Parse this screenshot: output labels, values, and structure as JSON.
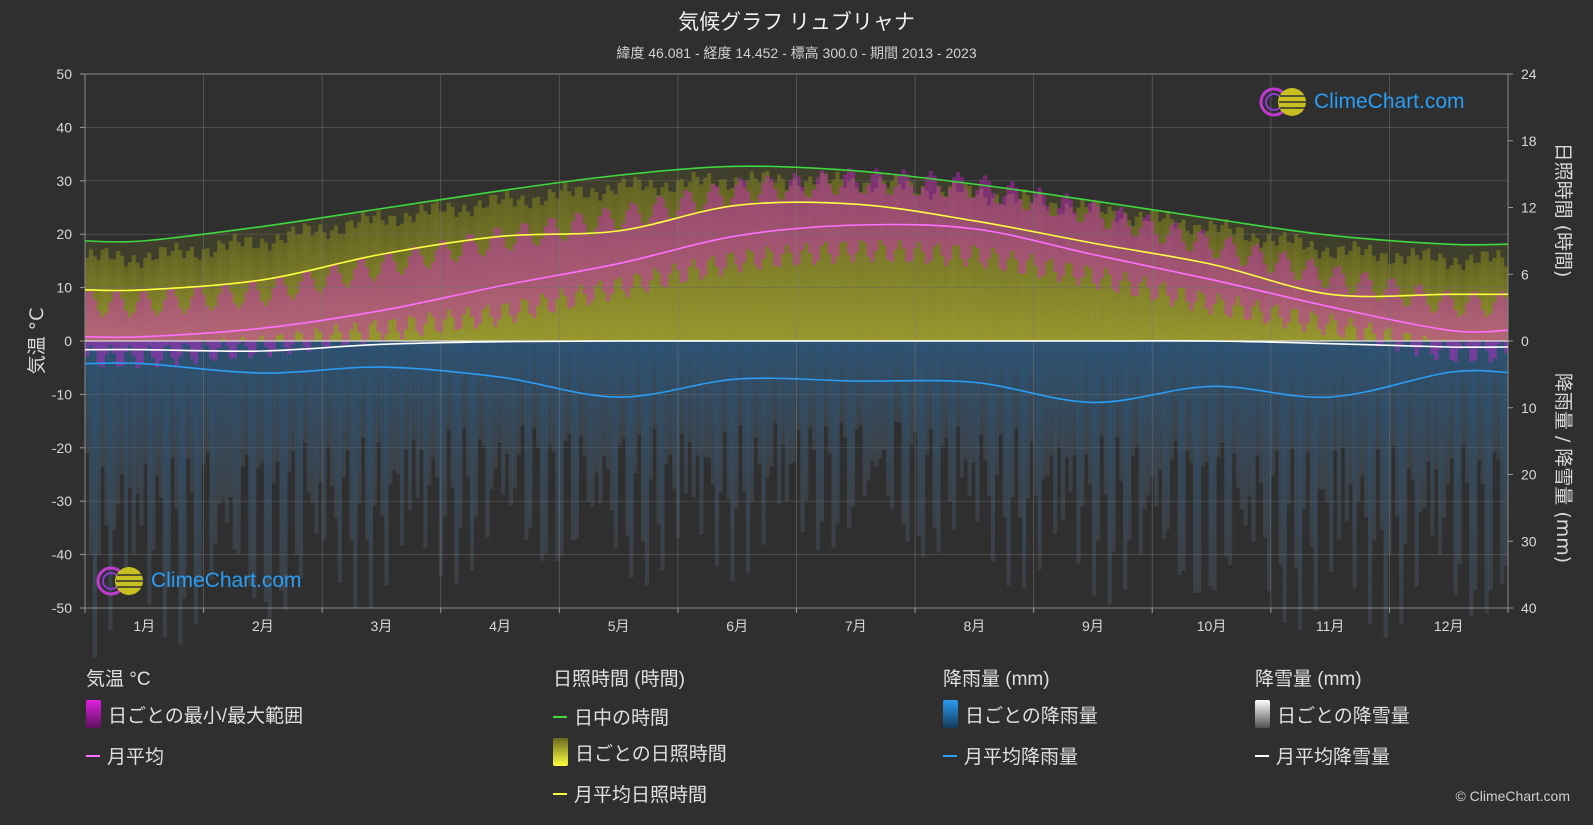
{
  "title": "気候グラフ リュブリャナ",
  "subtitle": "緯度 46.081 - 経度 14.452 - 標高 300.0 - 期間 2013 - 2023",
  "logo_text": "ClimeChart.com",
  "copyright": "© ClimeChart.com",
  "colors": {
    "temp_range": "#e020e0",
    "temp_avg": "#ff70ff",
    "daylight": "#3fd83f",
    "sunshine_fill": "#c8c832",
    "sunshine_avg": "#ffff40",
    "rain_fill": "#2a7fd0",
    "rain_avg": "#2a9df4",
    "snow_avg": "#ffffff",
    "grid": "#5a5a5a"
  },
  "legend": {
    "temp": {
      "heading": "気温 °C",
      "range_label": "日ごとの最小/最大範囲",
      "avg_label": "月平均"
    },
    "sun": {
      "heading": "日照時間 (時間)",
      "daylight_label": "日中の時間",
      "daily_label": "日ごとの日照時間",
      "avg_label": "月平均日照時間"
    },
    "rain": {
      "heading": "降雨量 (mm)",
      "daily_label": "日ごとの降雨量",
      "avg_label": "月平均降雨量"
    },
    "snow": {
      "heading": "降雪量 (mm)",
      "daily_label": "日ごとの降雪量",
      "avg_label": "月平均降雪量"
    }
  },
  "chart_data": {
    "type": "line",
    "categories": [
      "1月",
      "2月",
      "3月",
      "4月",
      "5月",
      "6月",
      "7月",
      "8月",
      "9月",
      "10月",
      "11月",
      "12月"
    ],
    "y_left": {
      "label": "気温 °C",
      "ticks": [
        50,
        40,
        30,
        20,
        10,
        0,
        -10,
        -20,
        -30,
        -40,
        -50
      ],
      "range": [
        -50,
        50
      ]
    },
    "y_right_top": {
      "label": "日照時間 (時間)",
      "ticks": [
        24,
        18,
        12,
        6,
        0
      ],
      "range": [
        0,
        24
      ]
    },
    "y_right_bottom": {
      "label": "降雨量 / 降雪量 (mm)",
      "ticks": [
        0,
        10,
        20,
        30,
        40
      ],
      "range": [
        0,
        40
      ]
    },
    "grid": true,
    "series": [
      {
        "name": "日中の時間",
        "axis": "sunshine_hours",
        "values": [
          9.0,
          10.3,
          11.9,
          13.5,
          14.9,
          15.7,
          15.3,
          14.1,
          12.6,
          11.0,
          9.5,
          8.7
        ]
      },
      {
        "name": "月平均日照時間",
        "axis": "sunshine_hours",
        "values": [
          4.6,
          5.5,
          7.8,
          9.4,
          9.9,
          12.2,
          12.3,
          10.8,
          8.8,
          6.9,
          4.2,
          4.2
        ]
      },
      {
        "name": "月平均",
        "axis": "temperature_c",
        "values": [
          0.8,
          2.4,
          5.7,
          10.3,
          14.5,
          19.7,
          21.7,
          21.0,
          16.2,
          11.5,
          6.4,
          2.0
        ]
      },
      {
        "name": "月平均降雨量",
        "axis": "precip_mm",
        "values": [
          3.4,
          4.8,
          3.9,
          5.4,
          8.4,
          5.7,
          6.0,
          6.2,
          9.2,
          6.8,
          8.4,
          4.7
        ]
      },
      {
        "name": "月平均降雪量",
        "axis": "precip_mm",
        "values": [
          1.3,
          1.5,
          0.5,
          0.1,
          0.0,
          0.0,
          0.0,
          0.0,
          0.0,
          0.0,
          0.4,
          0.9
        ]
      }
    ],
    "daily_temp_range": {
      "min": [
        -3,
        -1,
        2,
        5,
        10,
        15,
        17,
        16,
        12,
        7,
        3,
        -2
      ],
      "max": [
        5,
        7,
        12,
        17,
        21,
        26,
        28,
        27,
        22,
        16,
        10,
        5
      ]
    },
    "daily_sunshine_max": [
      7.5,
      9.0,
      11.0,
      12.5,
      13.8,
      14.5,
      14.3,
      13.3,
      11.8,
      10.2,
      8.2,
      7.3
    ],
    "daily_precip_max": [
      48,
      45,
      40,
      35,
      38,
      36,
      32,
      36,
      40,
      42,
      45,
      44
    ]
  }
}
